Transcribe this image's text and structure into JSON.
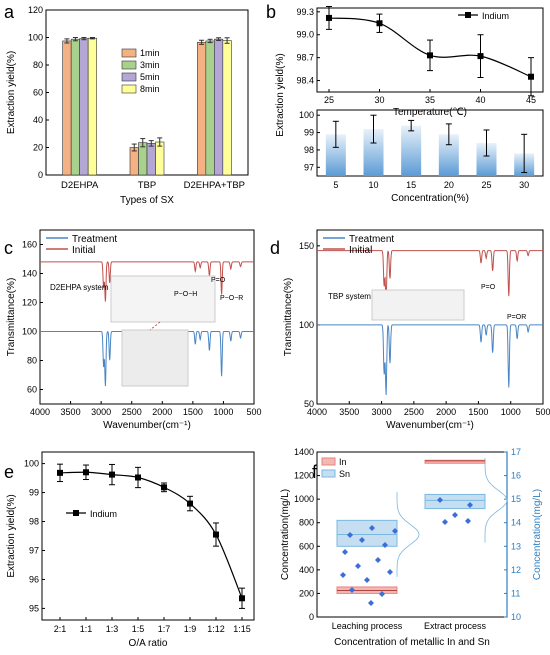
{
  "chart_data": [
    {
      "panel": "a",
      "type": "bar",
      "xlabel": "Types of SX",
      "ylabel": "Extraction yield(%)",
      "ylim": [
        0,
        120
      ],
      "yticks": [
        "0",
        "20",
        "40",
        "60",
        "80",
        "100",
        "120"
      ],
      "categories": [
        "D2EHPA",
        "TBP",
        "D2EHPA+TBP"
      ],
      "series": [
        {
          "name": "1min",
          "color": "#f4b183",
          "values": [
            97.5,
            20.0,
            96.5
          ],
          "errors": [
            1.5,
            2.5,
            1.5
          ]
        },
        {
          "name": "3min",
          "color": "#a9d18e",
          "values": [
            98.8,
            23.5,
            97.5
          ],
          "errors": [
            1.2,
            3.0,
            1.2
          ]
        },
        {
          "name": "5min",
          "color": "#b4a7d6",
          "values": [
            99.2,
            23.0,
            98.8
          ],
          "errors": [
            0.8,
            2.0,
            1.0
          ]
        },
        {
          "name": "8min",
          "color": "#ffff99",
          "values": [
            99.5,
            24.0,
            97.8
          ],
          "errors": [
            0.5,
            3.0,
            2.0
          ]
        }
      ],
      "legend_position": "center"
    },
    {
      "panel": "b-top",
      "type": "line",
      "xlabel": "Temperature(℃)",
      "ylabel": "Extraction yield(%)",
      "x": [
        25,
        30,
        35,
        40,
        45
      ],
      "xticks": [
        "25",
        "30",
        "35",
        "40",
        "45"
      ],
      "ylim": [
        98.25,
        99.35
      ],
      "yticks": [
        "98.4",
        "98.7",
        "99.0",
        "99.3"
      ],
      "series": [
        {
          "name": "Indium",
          "values": [
            99.22,
            99.15,
            98.73,
            98.72,
            98.45
          ],
          "errors": [
            0.15,
            0.12,
            0.2,
            0.28,
            0.25
          ]
        }
      ],
      "legend_position": "top-right"
    },
    {
      "panel": "b-bottom",
      "type": "bar",
      "xlabel": "Concentration(%)",
      "categories": [
        "5",
        "10",
        "15",
        "20",
        "25",
        "30"
      ],
      "values": [
        98.9,
        99.2,
        99.4,
        98.9,
        98.4,
        97.8
      ],
      "errors": [
        0.75,
        0.8,
        0.3,
        0.6,
        0.75,
        1.1
      ],
      "ylim": [
        96.5,
        100.3
      ],
      "yticks": [
        "97",
        "98",
        "99",
        "100"
      ],
      "color": "#5b9bd5"
    },
    {
      "panel": "c",
      "type": "line",
      "xlabel": "Wavenumber(cm⁻¹)",
      "ylabel": "Transmittance(%)",
      "xlim": [
        4000,
        500
      ],
      "xticks": [
        "4000",
        "3500",
        "3000",
        "2500",
        "2000",
        "1500",
        "1000",
        "500"
      ],
      "ylim": [
        50,
        170
      ],
      "yticks": [
        "60",
        "80",
        "100",
        "120",
        "140",
        "160"
      ],
      "series": [
        {
          "name": "Treatment",
          "color": "#4a86c5",
          "base": 100
        },
        {
          "name": "Initial",
          "color": "#c0504d",
          "base": 148
        }
      ],
      "annotations": [
        "D2EHPA system",
        "P=O",
        "P−O−H",
        "P−O−R"
      ],
      "legend_position": "top-left"
    },
    {
      "panel": "d",
      "type": "line",
      "xlabel": "Wavenumber(cm⁻¹)",
      "ylabel": "Transmittance(%)",
      "xlim": [
        4000,
        500
      ],
      "xticks": [
        "4000",
        "3500",
        "3000",
        "2500",
        "2000",
        "1500",
        "1000",
        "500"
      ],
      "ylim": [
        50,
        160
      ],
      "yticks": [
        "50",
        "100",
        "150"
      ],
      "series": [
        {
          "name": "Treatment",
          "color": "#4a86c5",
          "base": 100
        },
        {
          "name": "Initial",
          "color": "#c0504d",
          "base": 147
        }
      ],
      "annotations": [
        "TBP system",
        "P=O",
        "P=OR"
      ],
      "legend_position": "top-left"
    },
    {
      "panel": "e",
      "type": "line",
      "xlabel": "O/A ratio",
      "ylabel": "Extraction yield(%)",
      "categories": [
        "2:1",
        "1:1",
        "1:3",
        "1:5",
        "1:7",
        "1:9",
        "1:12",
        "1:15"
      ],
      "ylim": [
        94.6,
        100.4
      ],
      "yticks": [
        "95",
        "96",
        "97",
        "98",
        "99",
        "100"
      ],
      "series": [
        {
          "name": "Indium",
          "values": [
            99.68,
            99.7,
            99.62,
            99.52,
            99.18,
            98.62,
            97.55,
            95.35
          ],
          "errors": [
            0.3,
            0.25,
            0.35,
            0.35,
            0.15,
            0.25,
            0.4,
            0.35
          ]
        }
      ],
      "legend_position": "left"
    },
    {
      "panel": "f",
      "type": "box",
      "xlabel": "Concentration of metallic In and Sn",
      "ylabel_left": "Concentration(mg/L)",
      "ylabel_right": "Concentration(mg/L)",
      "categories": [
        "Leaching process",
        "Extract process"
      ],
      "ylim_left": [
        0,
        1400
      ],
      "yticks_left": [
        "0",
        "200",
        "400",
        "600",
        "800",
        "1000",
        "1200",
        "1400"
      ],
      "ylim_right": [
        10,
        17
      ],
      "yticks_right": [
        "10",
        "11",
        "12",
        "13",
        "14",
        "15",
        "16",
        "17"
      ],
      "series": [
        {
          "name": "In",
          "color": "#e8837e",
          "boxes": [
            {
              "q1": 200,
              "median": 225,
              "q3": 255
            },
            {
              "q1": 1320,
              "median": 1325,
              "q3": 1330
            }
          ]
        },
        {
          "name": "Sn",
          "color": "#7ab8e0",
          "boxes": [
            {
              "q1": 13.0,
              "median": 13.5,
              "q3": 14.1
            },
            {
              "q1": 14.6,
              "median": 14.95,
              "q3": 15.2
            }
          ]
        }
      ],
      "legend_position": "top-left"
    }
  ]
}
